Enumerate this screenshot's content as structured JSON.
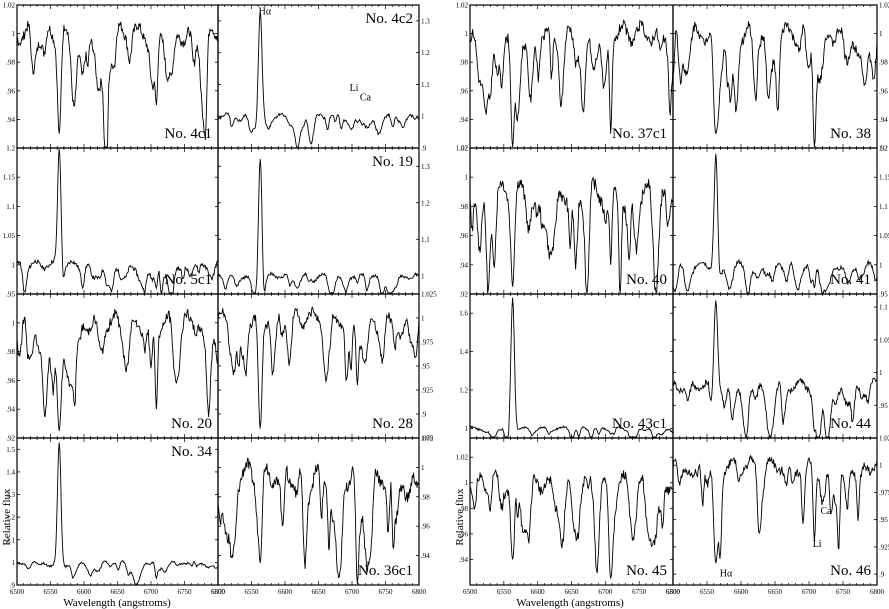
{
  "x_tick_labels": [
    "6500",
    "6550",
    "6600",
    "6650",
    "6700",
    "6750",
    "6800"
  ],
  "xlabel": "Wavelength (angstroms)",
  "ylabel": "Relative flux",
  "chart_data": [
    {
      "type": "line",
      "label": "No. 4c1",
      "ylim": [
        0.92,
        1.02
      ],
      "yticks": [
        {
          "v": 0.94,
          "t": ".94"
        },
        {
          "v": 0.96,
          "t": ".96"
        },
        {
          "v": 0.98,
          "t": ".98"
        },
        {
          "v": 1.0,
          "t": "1"
        },
        {
          "v": 1.02,
          "t": "1.02"
        }
      ],
      "shape": "abs",
      "level": 1.0,
      "noise": 0.012,
      "ha": 0.93,
      "li": 0.95,
      "annotations": []
    },
    {
      "type": "line",
      "label": "No. 4c2",
      "ylim": [
        0.9,
        1.35
      ],
      "yticks": [
        {
          "v": 0.9,
          "t": ".9"
        },
        {
          "v": 1.0,
          "t": "1"
        },
        {
          "v": 1.1,
          "t": "1.1"
        },
        {
          "v": 1.2,
          "t": "1.2"
        },
        {
          "v": 1.3,
          "t": "1.3"
        }
      ],
      "shape": "emis",
      "level": 1.0,
      "noise": 0.015,
      "ha": 1.33,
      "li": 0.98,
      "annotations": [
        {
          "text": "Hα",
          "x": 6570,
          "y": 1.32
        },
        {
          "text": "Li",
          "x": 6703,
          "y": 1.08
        },
        {
          "text": "Ca",
          "x": 6720,
          "y": 1.05
        }
      ]
    },
    {
      "type": "line",
      "label": "No. 37c1",
      "ylim": [
        0.92,
        1.02
      ],
      "yticks": [
        {
          "v": 0.92,
          "t": ".92"
        },
        {
          "v": 0.94,
          "t": ".94"
        },
        {
          "v": 0.96,
          "t": ".96"
        },
        {
          "v": 0.98,
          "t": ".98"
        },
        {
          "v": 1.0,
          "t": "1"
        },
        {
          "v": 1.02,
          "t": "1.02"
        }
      ],
      "shape": "abs",
      "level": 1.0,
      "noise": 0.012,
      "ha": 0.92,
      "li": 0.93,
      "annotations": []
    },
    {
      "type": "line",
      "label": "No. 38",
      "ylim": [
        0.92,
        1.02
      ],
      "yticks": [
        {
          "v": 0.92,
          "t": ".92"
        },
        {
          "v": 0.94,
          "t": ".94"
        },
        {
          "v": 0.96,
          "t": ".96"
        },
        {
          "v": 0.98,
          "t": ".98"
        },
        {
          "v": 1.0,
          "t": "1"
        },
        {
          "v": 1.02,
          "t": "1.02"
        }
      ],
      "shape": "abs",
      "level": 1.0,
      "noise": 0.012,
      "ha": 0.93,
      "li": 0.92,
      "annotations": []
    },
    {
      "type": "line",
      "label": "No. 5c1",
      "ylim": [
        0.95,
        1.2
      ],
      "yticks": [
        {
          "v": 0.95,
          "t": ".95"
        },
        {
          "v": 1.0,
          "t": "1"
        },
        {
          "v": 1.05,
          "t": "1.05"
        },
        {
          "v": 1.1,
          "t": "1.1"
        },
        {
          "v": 1.15,
          "t": "1.15"
        },
        {
          "v": 1.2,
          "t": "1.2"
        }
      ],
      "shape": "emis",
      "level": 1.0,
      "noise": 0.012,
      "ha": 1.2,
      "li": 0.96,
      "annotations": []
    },
    {
      "type": "line",
      "label": "No. 19",
      "ylim": [
        0.95,
        1.35
      ],
      "yticks": [
        {
          "v": 1.0,
          "t": "1"
        },
        {
          "v": 1.1,
          "t": "1.1"
        },
        {
          "v": 1.2,
          "t": "1.2"
        },
        {
          "v": 1.3,
          "t": "1.3"
        }
      ],
      "shape": "emis",
      "level": 1.0,
      "noise": 0.012,
      "ha": 1.32,
      "li": 0.98,
      "annotations": []
    },
    {
      "type": "line",
      "label": "No. 40",
      "ylim": [
        0.92,
        1.02
      ],
      "yticks": [
        {
          "v": 0.92,
          "t": ".92"
        },
        {
          "v": 0.94,
          "t": ".94"
        },
        {
          "v": 0.96,
          "t": ".96"
        },
        {
          "v": 0.98,
          "t": ".98"
        },
        {
          "v": 1.0,
          "t": "1"
        },
        {
          "v": 1.02,
          "t": "1.02"
        }
      ],
      "shape": "abs",
      "level": 0.99,
      "noise": 0.014,
      "ha": 0.925,
      "li": 0.94,
      "annotations": []
    },
    {
      "type": "line",
      "label": "No. 41",
      "ylim": [
        0.95,
        1.2
      ],
      "yticks": [
        {
          "v": 0.95,
          "t": ".95"
        },
        {
          "v": 1.0,
          "t": "1"
        },
        {
          "v": 1.05,
          "t": "1.05"
        },
        {
          "v": 1.1,
          "t": "1.1"
        },
        {
          "v": 1.15,
          "t": "1.15"
        },
        {
          "v": 1.2,
          "t": "1.2"
        }
      ],
      "shape": "emis",
      "level": 1.0,
      "noise": 0.012,
      "ha": 1.19,
      "li": 0.96,
      "annotations": []
    },
    {
      "type": "line",
      "label": "No. 20",
      "ylim": [
        0.92,
        1.02
      ],
      "yticks": [
        {
          "v": 0.92,
          "t": ".92"
        },
        {
          "v": 0.94,
          "t": ".94"
        },
        {
          "v": 0.96,
          "t": ".96"
        },
        {
          "v": 0.98,
          "t": ".98"
        },
        {
          "v": 1.0,
          "t": "1"
        }
      ],
      "shape": "abs",
      "level": 1.0,
      "noise": 0.012,
      "ha": 0.925,
      "li": 0.94,
      "annotations": []
    },
    {
      "type": "line",
      "label": "No. 28",
      "ylim": [
        0.875,
        1.025
      ],
      "yticks": [
        {
          "v": 0.875,
          "t": ".875"
        },
        {
          "v": 0.9,
          "t": ".9"
        },
        {
          "v": 0.925,
          "t": ".925"
        },
        {
          "v": 0.95,
          "t": ".95"
        },
        {
          "v": 0.975,
          "t": ".975"
        },
        {
          "v": 1.0,
          "t": "1"
        },
        {
          "v": 1.025,
          "t": "1.025"
        }
      ],
      "shape": "abs",
      "level": 1.0,
      "noise": 0.015,
      "ha": 0.885,
      "li": 0.93,
      "annotations": []
    },
    {
      "type": "line",
      "label": "No. 43c1",
      "ylim": [
        0.95,
        1.7
      ],
      "yticks": [
        {
          "v": 1.0,
          "t": "1"
        },
        {
          "v": 1.2,
          "t": "1.2"
        },
        {
          "v": 1.4,
          "t": "1.4"
        },
        {
          "v": 1.6,
          "t": "1.6"
        }
      ],
      "shape": "emis",
      "level": 1.0,
      "noise": 0.015,
      "ha": 1.68,
      "li": 0.97,
      "annotations": []
    },
    {
      "type": "line",
      "label": "No. 44",
      "ylim": [
        0.9,
        1.12
      ],
      "yticks": [
        {
          "v": 0.95,
          "t": ".95"
        },
        {
          "v": 1.0,
          "t": "1"
        },
        {
          "v": 1.05,
          "t": "1.05"
        },
        {
          "v": 1.1,
          "t": "1.1"
        }
      ],
      "shape": "emis",
      "level": 0.98,
      "noise": 0.015,
      "ha": 1.11,
      "li": 0.91,
      "annotations": []
    },
    {
      "type": "line",
      "label": "No. 34",
      "ylim": [
        0.9,
        1.55
      ],
      "yticks": [
        {
          "v": 0.9,
          "t": ".9"
        },
        {
          "v": 1.0,
          "t": "1"
        },
        {
          "v": 1.1,
          "t": "1.1"
        },
        {
          "v": 1.2,
          "t": "1.2"
        },
        {
          "v": 1.3,
          "t": "1.3"
        },
        {
          "v": 1.4,
          "t": "1.4"
        },
        {
          "v": 1.5,
          "t": "1.5"
        }
      ],
      "shape": "emis",
      "level": 1.0,
      "noise": 0.014,
      "ha": 1.53,
      "li": 0.93,
      "annotations": []
    },
    {
      "type": "line",
      "label": "No. 36c1",
      "ylim": [
        0.92,
        1.02
      ],
      "yticks": [
        {
          "v": 0.94,
          "t": ".94"
        },
        {
          "v": 0.96,
          "t": ".96"
        },
        {
          "v": 0.98,
          "t": ".98"
        },
        {
          "v": 1.0,
          "t": "1"
        },
        {
          "v": 1.02,
          "t": "1.02"
        }
      ],
      "shape": "abs",
      "level": 0.995,
      "noise": 0.015,
      "ha": 0.935,
      "li": 0.92,
      "annotations": []
    },
    {
      "type": "line",
      "label": "No. 45",
      "ylim": [
        0.92,
        1.035
      ],
      "yticks": [
        {
          "v": 0.94,
          "t": ".94"
        },
        {
          "v": 0.96,
          "t": ".96"
        },
        {
          "v": 0.98,
          "t": ".98"
        },
        {
          "v": 1.0,
          "t": "1"
        },
        {
          "v": 1.02,
          "t": "1.02"
        }
      ],
      "shape": "abs",
      "level": 1.0,
      "noise": 0.014,
      "ha": 0.94,
      "li": 0.925,
      "annotations": []
    },
    {
      "type": "line",
      "label": "No. 46",
      "ylim": [
        0.89,
        1.025
      ],
      "yticks": [
        {
          "v": 0.9,
          "t": ".9"
        },
        {
          "v": 0.925,
          "t": ".925"
        },
        {
          "v": 0.95,
          "t": ".95"
        },
        {
          "v": 0.975,
          "t": ".975"
        },
        {
          "v": 1.0,
          "t": "1"
        },
        {
          "v": 1.025,
          "t": "1.025"
        }
      ],
      "shape": "abs",
      "level": 1.0,
      "noise": 0.013,
      "ha": 0.91,
      "li": 0.93,
      "annotations": [
        {
          "text": "Ca",
          "x": 6725,
          "y": 0.955
        },
        {
          "text": "Li",
          "x": 6712,
          "y": 0.925
        },
        {
          "text": "Hα",
          "x": 6578,
          "y": 0.898
        }
      ]
    }
  ]
}
